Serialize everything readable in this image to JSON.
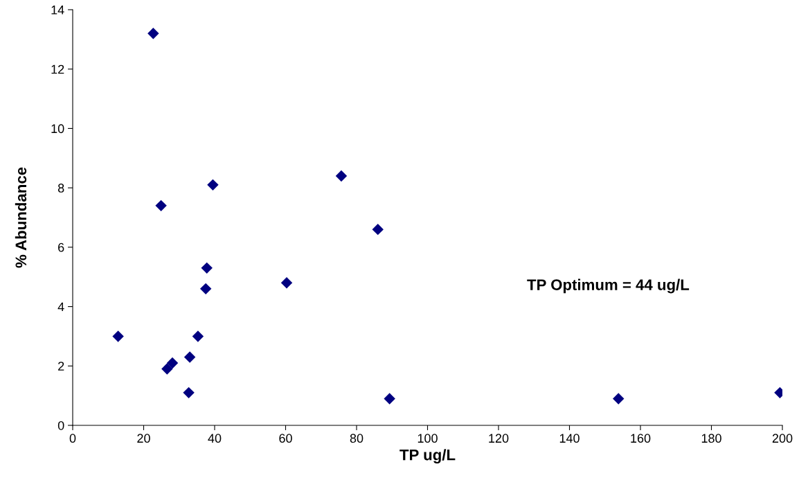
{
  "chart_data": {
    "type": "scatter",
    "xlabel": "TP ug/L",
    "ylabel": "% Abundance",
    "x": [
      22.7,
      24.9,
      39.5,
      75.7,
      86.0,
      37.8,
      37.5,
      60.3,
      12.8,
      35.3,
      33.0,
      26.6,
      27.4,
      28.1,
      32.7,
      89.3,
      153.8,
      199.3
    ],
    "series": [
      {
        "color": "#000080",
        "values": [
          13.2,
          7.4,
          8.1,
          8.4,
          6.6,
          5.3,
          4.6,
          4.8,
          3.0,
          3.0,
          2.3,
          1.9,
          null,
          2.1,
          1.1,
          0.9,
          0.9,
          1.1
        ]
      }
    ],
    "marker": "diamond",
    "xlim": [
      0,
      200
    ],
    "xticks": [
      0,
      20,
      40,
      60,
      80,
      100,
      120,
      140,
      160,
      180,
      200
    ],
    "ylim": [
      0,
      14
    ],
    "yticks": [
      0,
      2,
      4,
      6,
      8,
      10,
      12,
      14
    ],
    "annotations": [
      "TP Optimum = 44 ug/L"
    ]
  }
}
